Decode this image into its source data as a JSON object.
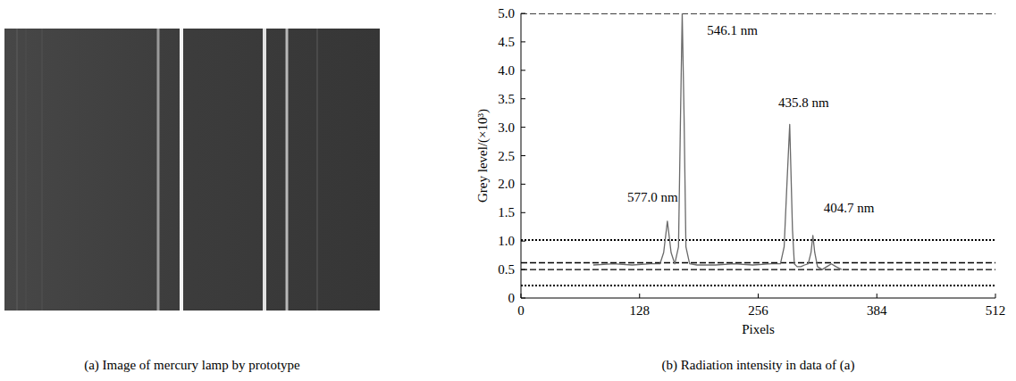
{
  "panel_a": {
    "caption": "(a) Image of mercury lamp by prototype"
  },
  "chart_data": {
    "type": "line",
    "caption": "(b) Radiation intensity in data of (a)",
    "x_label": "Pixels",
    "y_label": "Grey level/(×10³)",
    "xlim": [
      0,
      512
    ],
    "xticks": [
      0,
      128,
      256,
      384,
      512
    ],
    "ylim": [
      0,
      5
    ],
    "yticks": [
      0,
      0.5,
      {
        "value": 1,
        "label": "1.0"
      },
      1.5,
      {
        "value": 2,
        "label": "2.0"
      },
      2.5,
      {
        "value": 3,
        "label": "3.0"
      },
      3.5,
      {
        "value": 4,
        "label": "4.0"
      },
      4.5,
      {
        "value": 5,
        "label": "5.0"
      }
    ],
    "grid": false,
    "series": [
      {
        "name": "Radiation intensity",
        "color": "#6a6a6a",
        "x": [
          78,
          100,
          120,
          140,
          150,
          154,
          158,
          162,
          166,
          170,
          172,
          174,
          176,
          178,
          182,
          190,
          210,
          230,
          250,
          270,
          280,
          284,
          287,
          290,
          293,
          295,
          298,
          302,
          306,
          310,
          313,
          315,
          317,
          320,
          325,
          330,
          335,
          340,
          346
        ],
        "values": [
          0.58,
          0.6,
          0.58,
          0.6,
          0.6,
          0.8,
          1.35,
          0.8,
          0.6,
          0.9,
          3.0,
          5.0,
          3.2,
          0.9,
          0.6,
          0.58,
          0.58,
          0.6,
          0.58,
          0.6,
          0.6,
          0.9,
          2.0,
          3.05,
          1.2,
          0.6,
          0.55,
          0.55,
          0.58,
          0.6,
          0.8,
          1.1,
          0.8,
          0.55,
          0.5,
          0.55,
          0.6,
          0.55,
          0.5
        ]
      }
    ],
    "reference_lines": [
      {
        "value": 5,
        "line_style": "dashed"
      },
      {
        "value": 1.02,
        "line_style": "dotted"
      },
      {
        "value": 0.62,
        "line_style": "dashed"
      },
      {
        "value": 0.5,
        "line_style": "dashed"
      },
      {
        "value": 0.22,
        "line_style": "dotted"
      }
    ],
    "annotations": [
      {
        "text": "577.0 nm",
        "x": 142,
        "y": 1.7
      },
      {
        "text": "546.1 nm",
        "x": 228,
        "y": 4.62
      },
      {
        "text": "435.8 nm",
        "x": 305,
        "y": 3.35
      },
      {
        "text": "404.7 nm",
        "x": 354,
        "y": 1.5
      }
    ]
  }
}
